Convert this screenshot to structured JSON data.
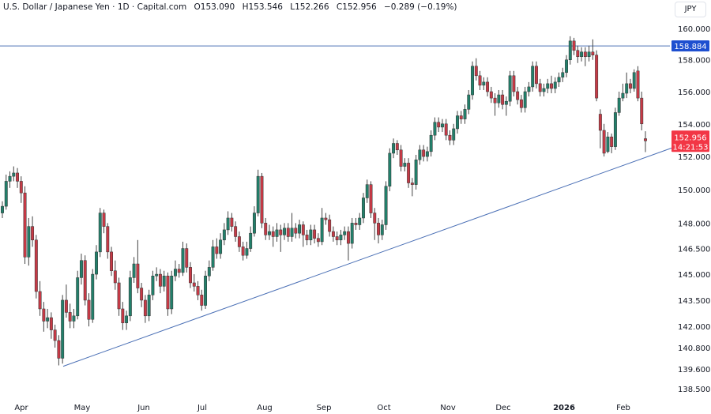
{
  "header": {
    "symbol": "U.S. Dollar / Japanese Yen · 1D · Capital.com",
    "open": "O153.090",
    "high": "H153.546",
    "low": "L152.266",
    "close": "C152.956",
    "change": "−0.289 (−0.19%)"
  },
  "currency_button": "JPY",
  "colors": {
    "up": "#22806b",
    "down": "#c63a46",
    "wick": "#555555",
    "line": "#4a6fb5",
    "resistance_label": "#1e4fd0",
    "price_label": "#f23645"
  },
  "chart_data": {
    "type": "candlestick",
    "title": "U.S. Dollar / Japanese Yen · 1D · Capital.com",
    "y_scale": "log",
    "ylim": [
      138.0,
      161.0
    ],
    "y_ticks": [
      "160.000",
      "158.000",
      "156.000",
      "154.000",
      "152.000",
      "150.000",
      "148.000",
      "146.500",
      "145.000",
      "143.500",
      "142.000",
      "140.800",
      "139.600",
      "138.500"
    ],
    "x_ticks": [
      "Apr",
      "May",
      "Jun",
      "Jul",
      "Aug",
      "Sep",
      "Oct",
      "Nov",
      "Dec",
      "2026",
      "Feb"
    ],
    "grid": false,
    "ohlc": [
      [
        148.6,
        149.3,
        148.3,
        149.0
      ],
      [
        149.0,
        150.9,
        148.8,
        150.5
      ],
      [
        150.5,
        151.1,
        150.1,
        150.8
      ],
      [
        150.8,
        151.4,
        150.5,
        151.0
      ],
      [
        151.0,
        151.3,
        150.1,
        150.5
      ],
      [
        150.5,
        150.8,
        149.2,
        149.8
      ],
      [
        149.8,
        150.2,
        145.6,
        146.0
      ],
      [
        146.0,
        148.3,
        145.5,
        147.8
      ],
      [
        147.8,
        148.4,
        146.6,
        147.0
      ],
      [
        147.0,
        147.3,
        143.6,
        144.0
      ],
      [
        144.0,
        144.6,
        142.6,
        143.0
      ],
      [
        143.0,
        143.4,
        141.7,
        142.3
      ],
      [
        142.3,
        143.0,
        141.9,
        142.5
      ],
      [
        142.5,
        142.8,
        141.3,
        141.8
      ],
      [
        141.8,
        142.1,
        140.8,
        141.2
      ],
      [
        141.2,
        141.5,
        139.8,
        140.2
      ],
      [
        140.2,
        143.8,
        139.9,
        143.5
      ],
      [
        143.5,
        144.4,
        142.5,
        142.8
      ],
      [
        142.8,
        143.3,
        141.9,
        142.3
      ],
      [
        142.3,
        143.0,
        141.9,
        142.6
      ],
      [
        142.6,
        145.2,
        142.4,
        144.8
      ],
      [
        144.8,
        146.2,
        144.4,
        145.8
      ],
      [
        145.8,
        146.1,
        143.2,
        143.5
      ],
      [
        143.5,
        143.9,
        142.0,
        142.4
      ],
      [
        142.4,
        145.3,
        142.2,
        145.0
      ],
      [
        145.0,
        146.7,
        144.7,
        146.3
      ],
      [
        146.3,
        148.9,
        146.0,
        148.6
      ],
      [
        148.6,
        148.8,
        147.4,
        147.8
      ],
      [
        147.8,
        148.0,
        145.9,
        146.3
      ],
      [
        146.3,
        146.6,
        144.9,
        145.2
      ],
      [
        145.2,
        145.8,
        144.1,
        144.5
      ],
      [
        144.5,
        144.8,
        142.6,
        143.0
      ],
      [
        143.0,
        143.4,
        141.8,
        142.2
      ],
      [
        142.2,
        142.9,
        141.8,
        142.6
      ],
      [
        142.6,
        145.2,
        142.3,
        144.8
      ],
      [
        144.8,
        146.0,
        144.5,
        145.6
      ],
      [
        145.6,
        147.0,
        143.9,
        144.2
      ],
      [
        144.2,
        144.5,
        143.1,
        143.5
      ],
      [
        143.5,
        143.8,
        142.2,
        142.6
      ],
      [
        142.6,
        144.1,
        142.3,
        143.8
      ],
      [
        143.8,
        145.2,
        143.5,
        144.9
      ],
      [
        144.9,
        145.4,
        144.6,
        145.0
      ],
      [
        145.0,
        145.3,
        143.9,
        144.3
      ],
      [
        144.3,
        145.2,
        144.0,
        144.9
      ],
      [
        144.9,
        145.1,
        142.6,
        143.0
      ],
      [
        143.0,
        145.2,
        142.7,
        144.9
      ],
      [
        144.9,
        145.8,
        144.6,
        145.3
      ],
      [
        145.3,
        145.6,
        144.8,
        145.1
      ],
      [
        145.1,
        146.9,
        144.9,
        146.5
      ],
      [
        146.5,
        146.8,
        145.1,
        145.4
      ],
      [
        145.4,
        145.7,
        144.2,
        144.5
      ],
      [
        144.5,
        145.0,
        144.0,
        144.3
      ],
      [
        144.3,
        144.6,
        143.5,
        143.8
      ],
      [
        143.8,
        144.1,
        142.9,
        143.2
      ],
      [
        143.2,
        145.2,
        143.0,
        144.9
      ],
      [
        144.9,
        145.8,
        144.6,
        145.4
      ],
      [
        145.4,
        147.0,
        145.2,
        146.6
      ],
      [
        146.6,
        147.1,
        145.9,
        146.2
      ],
      [
        146.2,
        147.4,
        145.9,
        147.0
      ],
      [
        147.0,
        148.0,
        146.7,
        147.6
      ],
      [
        147.6,
        148.7,
        147.3,
        148.3
      ],
      [
        148.3,
        148.6,
        147.5,
        147.8
      ],
      [
        147.8,
        148.1,
        146.9,
        147.2
      ],
      [
        147.2,
        147.5,
        146.3,
        146.6
      ],
      [
        146.6,
        146.9,
        145.8,
        146.1
      ],
      [
        146.1,
        146.9,
        145.9,
        146.5
      ],
      [
        146.5,
        147.8,
        146.3,
        147.4
      ],
      [
        147.4,
        149.0,
        147.2,
        148.6
      ],
      [
        148.6,
        151.2,
        148.4,
        150.8
      ],
      [
        150.8,
        151.0,
        147.7,
        148.0
      ],
      [
        148.0,
        148.3,
        147.0,
        147.3
      ],
      [
        147.3,
        147.9,
        147.0,
        147.5
      ],
      [
        147.5,
        147.8,
        146.6,
        147.2
      ],
      [
        147.2,
        148.0,
        146.9,
        147.6
      ],
      [
        147.6,
        147.9,
        146.3,
        147.3
      ],
      [
        147.3,
        148.0,
        147.0,
        147.7
      ],
      [
        147.7,
        148.0,
        146.9,
        147.2
      ],
      [
        147.2,
        148.6,
        146.9,
        147.7
      ],
      [
        147.7,
        148.0,
        147.1,
        147.4
      ],
      [
        147.4,
        148.2,
        147.1,
        147.9
      ],
      [
        147.9,
        148.1,
        146.6,
        147.3
      ],
      [
        147.3,
        147.6,
        146.7,
        147.0
      ],
      [
        147.0,
        147.9,
        146.7,
        147.6
      ],
      [
        147.6,
        147.9,
        146.8,
        147.1
      ],
      [
        147.1,
        147.4,
        146.6,
        146.9
      ],
      [
        146.9,
        148.9,
        146.7,
        148.3
      ],
      [
        148.3,
        148.6,
        147.9,
        148.2
      ],
      [
        148.2,
        148.5,
        147.2,
        147.5
      ],
      [
        147.5,
        147.8,
        146.9,
        147.2
      ],
      [
        147.2,
        147.5,
        146.7,
        147.0
      ],
      [
        147.0,
        147.6,
        146.7,
        147.3
      ],
      [
        147.3,
        147.8,
        147.0,
        147.5
      ],
      [
        147.5,
        147.8,
        145.8,
        146.8
      ],
      [
        146.8,
        148.3,
        146.5,
        148.0
      ],
      [
        148.0,
        148.3,
        147.6,
        147.9
      ],
      [
        147.9,
        148.6,
        147.6,
        148.3
      ],
      [
        148.3,
        149.8,
        148.0,
        149.5
      ],
      [
        149.5,
        150.6,
        149.2,
        150.3
      ],
      [
        150.3,
        150.5,
        148.3,
        148.6
      ],
      [
        148.6,
        148.9,
        147.0,
        148.0
      ],
      [
        148.0,
        148.3,
        146.8,
        147.3
      ],
      [
        147.3,
        148.2,
        147.0,
        147.9
      ],
      [
        147.9,
        150.5,
        147.6,
        150.2
      ],
      [
        150.2,
        152.5,
        149.9,
        152.2
      ],
      [
        152.2,
        153.1,
        151.9,
        152.8
      ],
      [
        152.8,
        153.0,
        152.1,
        152.4
      ],
      [
        152.4,
        152.7,
        151.1,
        151.4
      ],
      [
        151.4,
        151.9,
        151.1,
        151.6
      ],
      [
        151.6,
        151.9,
        150.1,
        150.4
      ],
      [
        150.4,
        150.7,
        149.6,
        150.3
      ],
      [
        150.3,
        152.1,
        150.0,
        151.8
      ],
      [
        151.8,
        152.7,
        151.5,
        152.4
      ],
      [
        152.4,
        152.7,
        151.7,
        152.0
      ],
      [
        152.0,
        152.6,
        151.7,
        152.3
      ],
      [
        152.3,
        153.6,
        152.0,
        153.3
      ],
      [
        153.3,
        154.4,
        153.0,
        154.1
      ],
      [
        154.1,
        154.4,
        153.5,
        153.8
      ],
      [
        153.8,
        154.3,
        153.5,
        154.0
      ],
      [
        154.0,
        154.3,
        153.0,
        153.3
      ],
      [
        153.3,
        153.6,
        152.7,
        153.0
      ],
      [
        153.0,
        154.0,
        152.7,
        153.7
      ],
      [
        153.7,
        154.8,
        153.4,
        154.5
      ],
      [
        154.5,
        154.8,
        154.0,
        154.3
      ],
      [
        154.3,
        155.2,
        154.0,
        154.9
      ],
      [
        154.9,
        156.1,
        154.6,
        155.8
      ],
      [
        155.8,
        157.9,
        155.5,
        157.6
      ],
      [
        157.6,
        158.1,
        156.7,
        157.0
      ],
      [
        157.0,
        157.3,
        156.1,
        156.4
      ],
      [
        156.4,
        156.9,
        156.1,
        156.6
      ],
      [
        156.6,
        156.9,
        155.7,
        156.0
      ],
      [
        156.0,
        156.3,
        155.3,
        155.6
      ],
      [
        155.6,
        155.9,
        154.5,
        155.3
      ],
      [
        155.3,
        156.1,
        155.0,
        155.8
      ],
      [
        155.8,
        156.1,
        154.9,
        155.2
      ],
      [
        155.2,
        155.7,
        154.5,
        155.4
      ],
      [
        155.4,
        157.3,
        155.1,
        157.0
      ],
      [
        157.0,
        157.3,
        155.7,
        156.0
      ],
      [
        156.0,
        156.3,
        155.2,
        155.5
      ],
      [
        155.5,
        155.8,
        154.7,
        155.0
      ],
      [
        155.0,
        156.3,
        154.7,
        156.0
      ],
      [
        156.0,
        156.6,
        155.7,
        156.3
      ],
      [
        156.3,
        157.9,
        156.0,
        157.6
      ],
      [
        157.6,
        157.9,
        156.2,
        156.5
      ],
      [
        156.5,
        156.8,
        155.7,
        156.0
      ],
      [
        156.0,
        156.5,
        155.7,
        156.2
      ],
      [
        156.2,
        156.8,
        155.9,
        156.5
      ],
      [
        156.5,
        157.0,
        155.9,
        156.2
      ],
      [
        156.2,
        156.9,
        155.9,
        156.6
      ],
      [
        156.6,
        157.2,
        156.3,
        156.9
      ],
      [
        156.9,
        157.5,
        156.6,
        157.2
      ],
      [
        157.2,
        158.3,
        156.9,
        158.0
      ],
      [
        158.0,
        159.5,
        157.7,
        159.2
      ],
      [
        159.2,
        159.4,
        158.3,
        158.6
      ],
      [
        158.6,
        158.9,
        157.8,
        158.2
      ],
      [
        158.2,
        158.8,
        157.9,
        158.5
      ],
      [
        158.5,
        158.8,
        157.6,
        158.2
      ],
      [
        158.2,
        158.9,
        157.9,
        158.5
      ],
      [
        158.5,
        159.3,
        158.0,
        158.3
      ],
      [
        158.3,
        158.6,
        155.4,
        155.6
      ],
      [
        154.6,
        154.9,
        152.5,
        153.6
      ],
      [
        153.6,
        154.0,
        152.0,
        152.2
      ],
      [
        152.3,
        153.5,
        152.2,
        153.2
      ],
      [
        153.2,
        153.4,
        152.2,
        152.6
      ],
      [
        152.6,
        155.0,
        152.4,
        154.7
      ],
      [
        154.7,
        156.0,
        154.5,
        155.6
      ],
      [
        155.6,
        156.5,
        155.4,
        155.9
      ],
      [
        155.9,
        157.2,
        155.6,
        156.5
      ],
      [
        156.5,
        156.8,
        155.9,
        156.2
      ],
      [
        156.2,
        157.4,
        156.0,
        157.2
      ],
      [
        157.3,
        157.6,
        155.4,
        155.6
      ],
      [
        155.6,
        156.0,
        153.6,
        154.0
      ],
      [
        153.09,
        153.546,
        152.266,
        152.956
      ]
    ],
    "resistance_level": 158.884,
    "support_trendline": {
      "start_price": 139.75,
      "end_price": 152.6
    },
    "last_price_label": "152.956",
    "resistance_label": "158.884",
    "countdown": "14:21:53"
  }
}
